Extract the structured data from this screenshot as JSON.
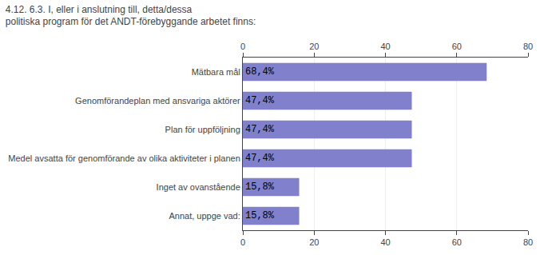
{
  "chart_data": {
    "type": "bar",
    "orientation": "horizontal",
    "title": "4.12. 6.3. I, eller i anslutning till, detta/dessa politiska program för det ANDT-förebyggande arbetet finns:",
    "categories": [
      "Mätbara mål",
      "Genomförandeplan med ansvariga aktörer",
      "Plan för uppföljning",
      "Medel avsatta för genomförande av olika aktiviteter i planen",
      "Inget av ovanstående",
      "Annat, uppge vad:"
    ],
    "values": [
      68.4,
      47.4,
      47.4,
      47.4,
      15.8,
      15.8
    ],
    "value_labels": [
      "68,4%",
      "47,4%",
      "47,4%",
      "47,4%",
      "15,8%",
      "15,8%"
    ],
    "data_labels": true,
    "color": "#8080cc",
    "xlim": [
      0,
      80
    ],
    "xticks": [
      0,
      20,
      40,
      60,
      80
    ],
    "grid": true
  }
}
